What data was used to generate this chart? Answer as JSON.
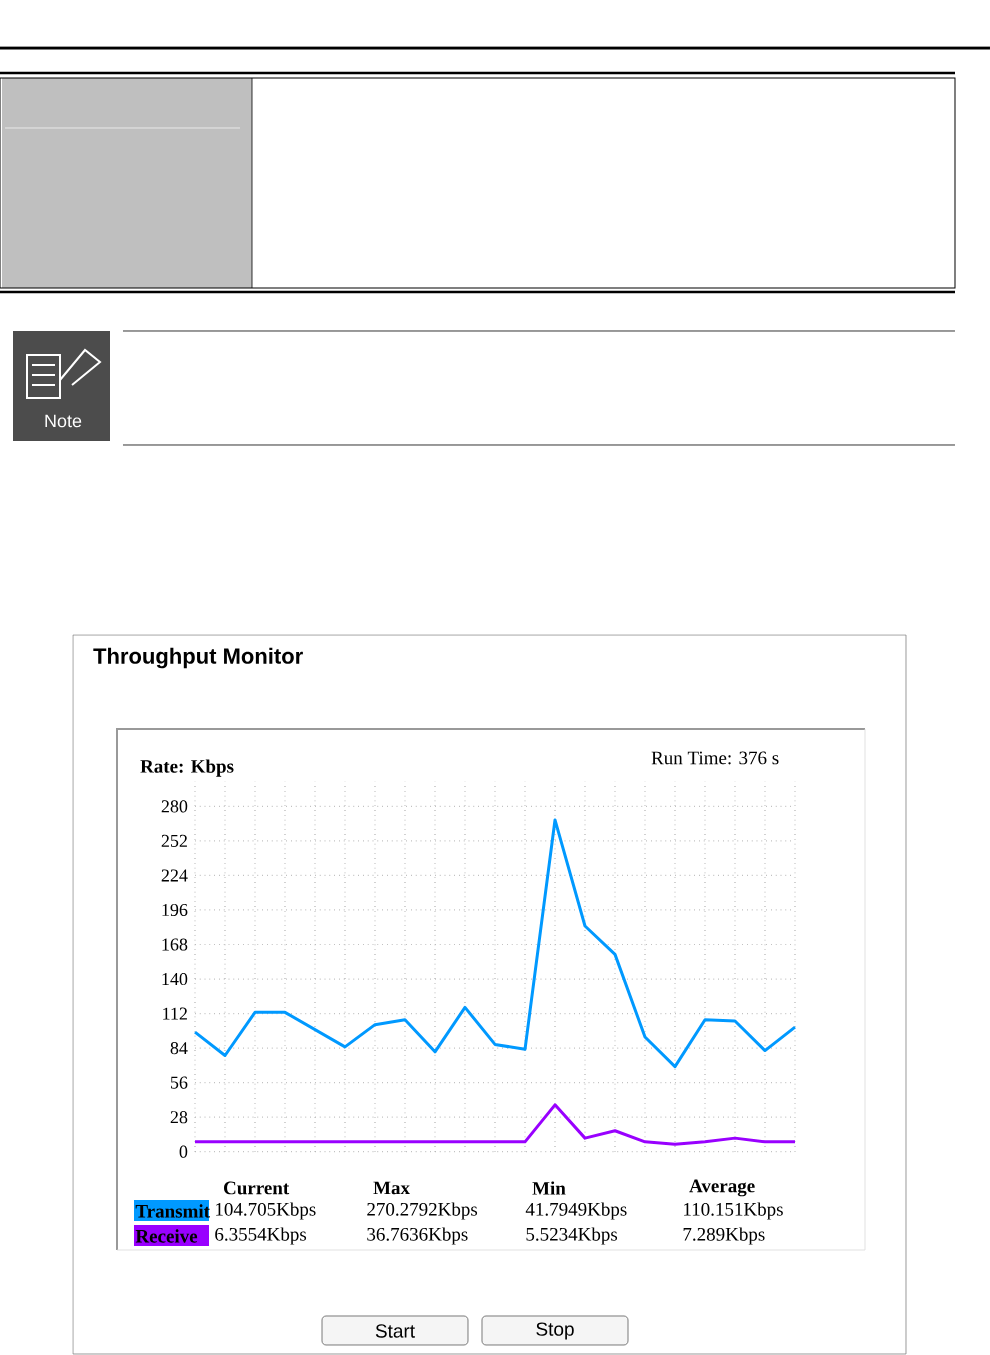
{
  "chart_data": {
    "type": "line",
    "title": "Throughput Monitor",
    "ylabel": "Rate: Kbps",
    "categories": [
      null,
      null,
      null,
      null,
      null,
      null,
      null,
      null,
      null,
      null,
      null,
      null,
      null,
      null,
      null,
      null,
      null,
      null,
      null,
      null,
      null
    ],
    "series": [
      {
        "name": "Transmit",
        "color": "#0099ff",
        "values": [
          97,
          78,
          113,
          113,
          99,
          85,
          103,
          107,
          81,
          117,
          87,
          83,
          269,
          183,
          160,
          93,
          69,
          107,
          106,
          82,
          101
        ]
      },
      {
        "name": "Receive",
        "color": "#9900ff",
        "values": [
          8,
          8,
          8,
          8,
          8,
          8,
          8,
          8,
          8,
          8,
          8,
          8,
          38,
          11,
          17,
          8,
          6,
          8,
          11,
          8,
          8
        ]
      }
    ],
    "ylim": [
      0,
      300
    ],
    "yticks": [
      0,
      28,
      56,
      84,
      112,
      140,
      168,
      196,
      224,
      252,
      280
    ],
    "grid": true,
    "legend": "bottom",
    "tick_labels": "y",
    "marker": "none",
    "line_style": "solid",
    "annotations": [
      "Run Time: 376 s",
      "Current",
      "Max",
      "Min",
      "Average",
      "104.705Kbps",
      "270.2792Kbps",
      "41.7949Kbps",
      "110.151Kbps",
      "6.3554Kbps",
      "36.7636Kbps",
      "5.5234Kbps",
      "7.289Kbps",
      "Start",
      "Stop",
      "Note"
    ]
  }
}
